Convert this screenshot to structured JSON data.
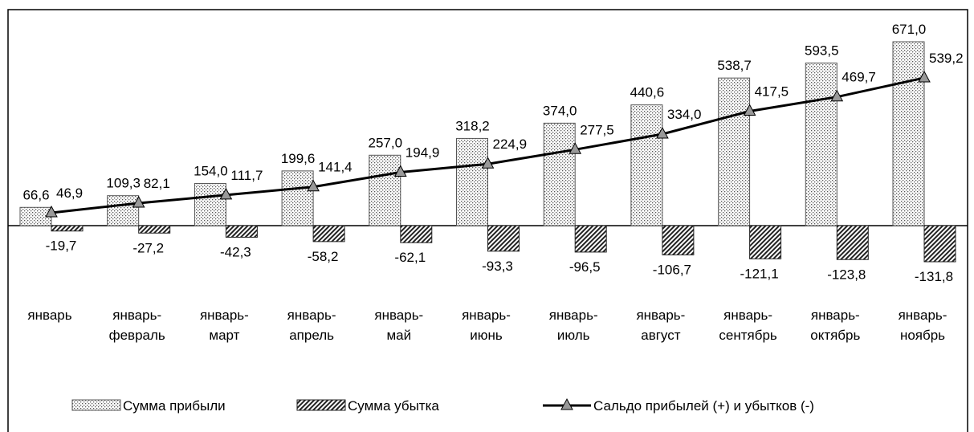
{
  "chart_data": {
    "type": "bar",
    "categories": [
      "январь",
      "январь-\nфевраль",
      "январь-\nмарт",
      "январь-\nапрель",
      "январь-\nмай",
      "январь-\nиюнь",
      "январь-\nиюль",
      "январь-\nавгуст",
      "январь-\nсентябрь",
      "январь-\nоктябрь",
      "январь-\nноябрь"
    ],
    "series": [
      {
        "name": "Сумма прибыли",
        "type": "bar",
        "color": "#555555",
        "values": [
          66.6,
          109.3,
          154.0,
          199.6,
          257.0,
          318.2,
          374.0,
          440.6,
          538.7,
          593.5,
          671.0
        ],
        "value_labels": [
          "66,6",
          "109,3",
          "154,0",
          "199,6",
          "257,0",
          "318,2",
          "374,0",
          "440,6",
          "538,7",
          "593,5",
          "671,0"
        ]
      },
      {
        "name": "Сумма убытка",
        "type": "bar",
        "color": "#222222",
        "values": [
          -19.7,
          -27.2,
          -42.3,
          -58.2,
          -62.1,
          -93.3,
          -96.5,
          -106.7,
          -121.1,
          -123.8,
          -131.8
        ],
        "value_labels": [
          "-19,7",
          "-27,2",
          "-42,3",
          "-58,2",
          "-62,1",
          "-93,3",
          "-96,5",
          "-106,7",
          "-121,1",
          "-123,8",
          "-131,8"
        ]
      },
      {
        "name": "Сальдо прибылей (+) и убытков (-)",
        "type": "line",
        "color": "#000000",
        "values": [
          46.9,
          82.1,
          111.7,
          141.4,
          194.9,
          224.9,
          277.5,
          334.0,
          417.5,
          469.7,
          539.2
        ],
        "value_labels": [
          "46,9",
          "82,1",
          "111,7",
          "141,4",
          "194,9",
          "224,9",
          "277,5",
          "334,0",
          "417,5",
          "469,7",
          "539,2"
        ]
      }
    ],
    "legend": "bottom"
  }
}
